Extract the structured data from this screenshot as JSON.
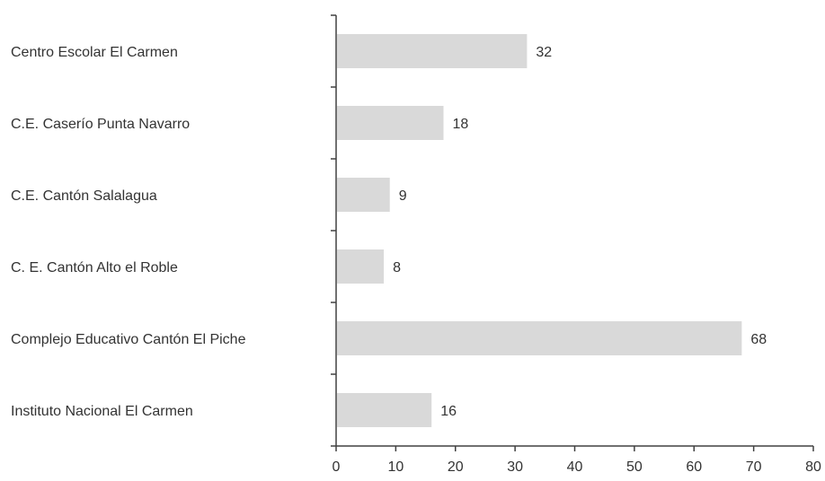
{
  "chart_data": {
    "type": "bar",
    "orientation": "horizontal",
    "categories": [
      "Centro Escolar El Carmen",
      "C.E. Caserío Punta Navarro",
      "C.E. Cantón Salalagua",
      "C. E. Cantón Alto el Roble",
      "Complejo Educativo Cantón El Piche",
      "Instituto Nacional El Carmen"
    ],
    "values": [
      32,
      18,
      9,
      8,
      68,
      16
    ],
    "data_labels": [
      "32",
      "18",
      "9",
      "8",
      "68",
      "16"
    ],
    "xlim": [
      0,
      80
    ],
    "x_ticks": [
      "0",
      "10",
      "20",
      "30",
      "40",
      "50",
      "60",
      "70",
      "80"
    ],
    "title": "",
    "xlabel": "",
    "ylabel": "",
    "grid": false,
    "legend": "none",
    "colors": {
      "bar": "#d9d9d9",
      "axis": "#404040",
      "text": "#333333"
    }
  }
}
